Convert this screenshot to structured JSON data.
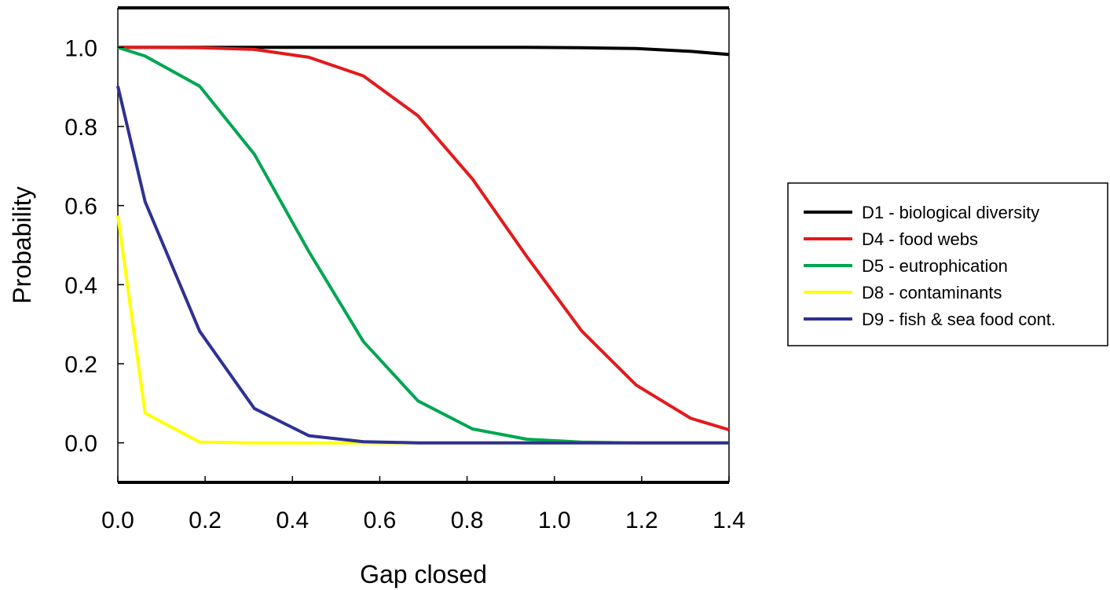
{
  "chart_data": {
    "type": "line",
    "title": "",
    "xlabel": "Gap closed",
    "ylabel": "Probability",
    "xlim": [
      0.0,
      1.4
    ],
    "ylim": [
      -0.1,
      1.1
    ],
    "xticks": [
      "0.0",
      "0.2",
      "0.4",
      "0.6",
      "0.8",
      "1.0",
      "1.2",
      "1.4"
    ],
    "yticks": [
      "0.0",
      "0.2",
      "0.4",
      "0.6",
      "0.8",
      "1.0"
    ],
    "grid": false,
    "legend_position": "right",
    "x": [
      0.0,
      0.0625,
      0.1875,
      0.3125,
      0.4375,
      0.5625,
      0.6875,
      0.8125,
      0.9375,
      1.0625,
      1.1875,
      1.3125,
      1.4
    ],
    "series": [
      {
        "name": "D1 - biological diversity",
        "color": "#000000",
        "values": [
          1.0,
          1.0,
          1.0,
          1.0,
          1.0,
          1.0,
          1.0,
          1.0,
          1.0,
          0.999,
          0.997,
          0.99,
          0.982
        ]
      },
      {
        "name": "D4 - food webs",
        "color": "#e31a1c",
        "values": [
          1.0,
          1.0,
          0.999,
          0.995,
          0.975,
          0.928,
          0.827,
          0.667,
          0.47,
          0.283,
          0.146,
          0.062,
          0.033
        ]
      },
      {
        "name": "D5 - eutrophication",
        "color": "#00a651",
        "values": [
          1.0,
          0.978,
          0.902,
          0.73,
          0.484,
          0.256,
          0.106,
          0.035,
          0.009,
          0.002,
          0.0,
          0.0,
          0.0
        ]
      },
      {
        "name": "D8 - contaminants",
        "color": "#ffff00",
        "values": [
          0.575,
          0.075,
          0.002,
          0.0,
          0.0,
          0.0,
          0.0,
          0.0,
          0.0,
          0.0,
          0.0,
          0.0,
          0.0
        ]
      },
      {
        "name": "D9 - fish & sea food cont.",
        "color": "#2e3192",
        "values": [
          0.902,
          0.61,
          0.282,
          0.087,
          0.018,
          0.003,
          0.0,
          0.0,
          0.0,
          0.0,
          0.0,
          0.0,
          0.0
        ]
      }
    ]
  }
}
